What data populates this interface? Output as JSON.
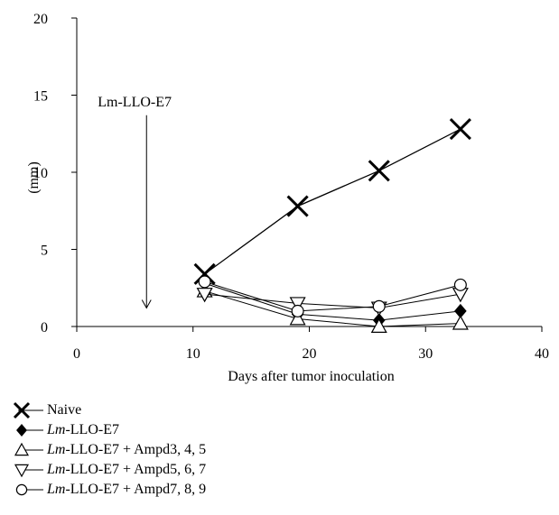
{
  "chart_data": {
    "type": "line",
    "title": "",
    "xlabel": "Days after tumor inoculation",
    "ylabel": "(mm)",
    "xlim": [
      0,
      40
    ],
    "ylim": [
      0,
      20
    ],
    "x_ticks": [
      "0",
      "10",
      "20",
      "30",
      "40"
    ],
    "y_ticks": [
      "0",
      "5",
      "10",
      "15",
      "20"
    ],
    "grid": false,
    "legend_placement": "bottom",
    "annotation": {
      "text": "Lm-LLO-E7",
      "arrow_x": 6,
      "arrow_from_y": 14.4,
      "arrow_to_y": 1.2
    },
    "series": [
      {
        "name": "Naive",
        "name_italic": "",
        "name_rest": "Naive",
        "marker": "x",
        "x": [
          11,
          19,
          26,
          33
        ],
        "y": [
          3.4,
          7.8,
          10.1,
          12.8
        ]
      },
      {
        "name": "Lm-LLO-E7",
        "name_italic": "Lm",
        "name_rest": "-LLO-E7",
        "marker": "diamond",
        "x": [
          11,
          19,
          26,
          33
        ],
        "y": [
          2.8,
          0.8,
          0.4,
          1.0
        ]
      },
      {
        "name": "Lm-LLO-E7 + Ampd3, 4, 5",
        "name_italic": "Lm",
        "name_rest": "-LLO-E7 + Ampd3, 4, 5",
        "marker": "triangle-up",
        "x": [
          11,
          19,
          26,
          33
        ],
        "y": [
          2.3,
          0.5,
          0.0,
          0.2
        ]
      },
      {
        "name": "Lm-LLO-E7 + Ampd5, 6, 7",
        "name_italic": "Lm",
        "name_rest": "-LLO-E7 + Ampd5, 6, 7",
        "marker": "triangle-down",
        "x": [
          11,
          19,
          26,
          33
        ],
        "y": [
          2.1,
          1.5,
          1.2,
          2.1
        ]
      },
      {
        "name": "Lm-LLO-E7 + Ampd7, 8, 9",
        "name_italic": "Lm",
        "name_rest": "-LLO-E7 + Ampd7, 8, 9",
        "marker": "circle",
        "x": [
          11,
          19,
          26,
          33
        ],
        "y": [
          2.9,
          1.0,
          1.3,
          2.7
        ]
      }
    ]
  }
}
